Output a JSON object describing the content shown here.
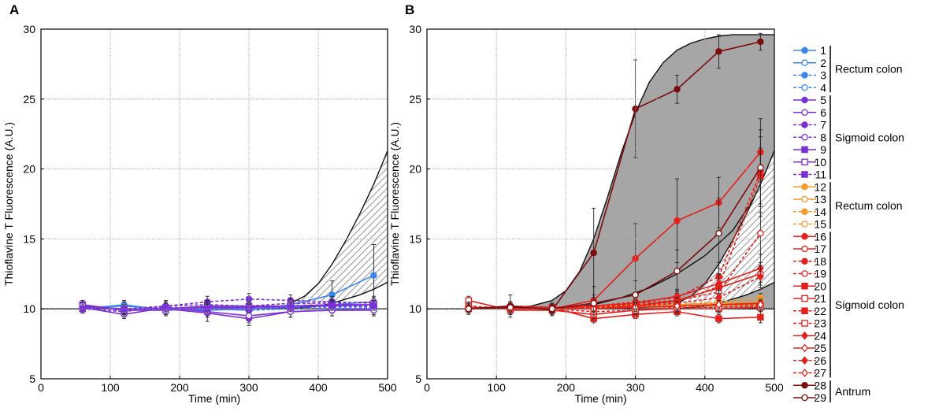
{
  "chart_data": [
    {
      "type": "line",
      "panel": "A",
      "xlabel": "Time (min)",
      "ylabel": "Thioflavine T Fluorescence (A.U.)",
      "xlim": [
        0,
        500
      ],
      "ylim": [
        5,
        30
      ],
      "xticks": [
        0,
        100,
        200,
        300,
        400,
        500
      ],
      "yticks": [
        5,
        10,
        15,
        20,
        25,
        30
      ],
      "grid": true,
      "baseline": 10,
      "x": [
        60,
        120,
        180,
        240,
        300,
        360,
        420,
        480
      ],
      "band": {
        "style": "hatched",
        "x": [
          360,
          380,
          400,
          420,
          440,
          460,
          480,
          500
        ],
        "upper": [
          10.4,
          10.9,
          11.8,
          13.2,
          14.9,
          16.8,
          18.9,
          21.3
        ],
        "lower": [
          10.0,
          10.1,
          10.2,
          10.4,
          10.7,
          11.0,
          11.4,
          11.9
        ]
      },
      "series": [
        {
          "name": "1",
          "values": [
            10.0,
            10.3,
            9.9,
            10.0,
            9.9,
            10.3,
            11.0,
            12.4
          ],
          "err": [
            0.3,
            0.3,
            0.4,
            0.4,
            0.4,
            0.5,
            1.0,
            2.2
          ]
        },
        {
          "name": "2",
          "values": [
            10.1,
            10.2,
            10.0,
            9.9,
            10.0,
            10.1,
            10.3,
            10.5
          ],
          "err": [
            0.3,
            0.3,
            0.3,
            0.3,
            0.3,
            0.3,
            0.3,
            0.4
          ]
        },
        {
          "name": "3",
          "values": [
            10.0,
            10.0,
            10.1,
            10.0,
            9.9,
            10.0,
            10.1,
            10.2
          ],
          "err": [
            0.2,
            0.2,
            0.3,
            0.3,
            0.3,
            0.3,
            0.3,
            0.3
          ]
        },
        {
          "name": "4",
          "values": [
            10.1,
            9.9,
            10.0,
            10.1,
            10.0,
            10.1,
            10.0,
            10.1
          ],
          "err": [
            0.2,
            0.2,
            0.3,
            0.3,
            0.3,
            0.3,
            0.3,
            0.3
          ]
        },
        {
          "name": "5",
          "values": [
            10.2,
            10.0,
            10.0,
            9.7,
            9.3,
            9.8,
            9.9,
            10.0
          ],
          "err": [
            0.3,
            0.3,
            0.4,
            0.6,
            0.5,
            0.4,
            0.4,
            0.4
          ]
        },
        {
          "name": "6",
          "values": [
            10.1,
            9.6,
            10.1,
            9.8,
            9.5,
            9.8,
            9.9,
            9.9
          ],
          "err": [
            0.3,
            0.3,
            0.4,
            0.4,
            0.5,
            0.4,
            0.4,
            0.4
          ]
        },
        {
          "name": "7",
          "values": [
            10.1,
            10.0,
            10.2,
            10.5,
            10.7,
            10.6,
            10.5,
            10.4
          ],
          "err": [
            0.3,
            0.3,
            0.4,
            0.4,
            0.4,
            0.4,
            0.4,
            0.4
          ]
        },
        {
          "name": "8",
          "values": [
            10.0,
            9.8,
            10.2,
            10.3,
            10.2,
            10.4,
            10.4,
            10.5
          ],
          "err": [
            0.3,
            0.3,
            0.3,
            0.3,
            0.3,
            0.3,
            0.3,
            0.3
          ]
        },
        {
          "name": "9",
          "values": [
            10.3,
            9.9,
            10.0,
            10.2,
            10.2,
            10.2,
            10.3,
            10.3
          ],
          "err": [
            0.3,
            0.3,
            0.3,
            0.3,
            0.3,
            0.3,
            0.3,
            0.3
          ]
        },
        {
          "name": "10",
          "values": [
            10.2,
            9.9,
            9.9,
            10.1,
            10.1,
            10.2,
            10.2,
            10.3
          ],
          "err": [
            0.3,
            0.3,
            0.3,
            0.3,
            0.3,
            0.3,
            0.3,
            0.3
          ]
        },
        {
          "name": "11",
          "values": [
            10.0,
            10.0,
            10.1,
            10.0,
            10.0,
            10.1,
            10.2,
            10.2
          ],
          "err": [
            0.3,
            0.3,
            0.3,
            0.3,
            0.3,
            0.3,
            0.3,
            0.3
          ]
        }
      ]
    },
    {
      "type": "line",
      "panel": "B",
      "xlabel": "Time (min)",
      "ylabel": "Thioflavine T Fluorescence (A.U.)",
      "xlim": [
        0,
        500
      ],
      "ylim": [
        5,
        30
      ],
      "xticks": [
        0,
        100,
        200,
        300,
        400,
        500
      ],
      "yticks": [
        5,
        10,
        15,
        20,
        25,
        30
      ],
      "grid": true,
      "baseline": 10,
      "x": [
        60,
        120,
        180,
        240,
        300,
        360,
        420,
        480
      ],
      "band": {
        "style": "solid-gray",
        "x": [
          120,
          150,
          180,
          200,
          220,
          240,
          260,
          280,
          300,
          320,
          340,
          360,
          380,
          400,
          420,
          440,
          460,
          480,
          500
        ],
        "upper": [
          10.1,
          10.2,
          10.6,
          11.3,
          12.7,
          15.0,
          18.0,
          21.2,
          24.0,
          26.2,
          27.6,
          28.5,
          29.0,
          29.3,
          29.5,
          29.6,
          29.6,
          29.6,
          29.6
        ],
        "lower": [
          10.0,
          10.0,
          10.0,
          10.0,
          10.0,
          10.0,
          10.0,
          10.0,
          10.0,
          10.0,
          10.0,
          10.0,
          10.0,
          10.0,
          10.0,
          10.0,
          10.0,
          10.0,
          10.0
        ],
        "inner_curve": {
          "x": [
            200,
            240,
            280,
            320,
            360,
            400,
            440,
            480,
            500
          ],
          "y": [
            10.0,
            10.3,
            10.8,
            11.5,
            12.5,
            13.8,
            15.6,
            18.6,
            21.2
          ]
        }
      },
      "band2": {
        "style": "hatched",
        "x": [
          360,
          380,
          400,
          420,
          440,
          460,
          480,
          500
        ],
        "upper": [
          10.4,
          10.9,
          11.8,
          13.2,
          14.9,
          16.8,
          18.9,
          21.3
        ],
        "lower": [
          10.0,
          10.1,
          10.2,
          10.4,
          10.7,
          11.0,
          11.4,
          11.9
        ]
      },
      "series": [
        {
          "name": "12",
          "values": [
            10.0,
            10.1,
            10.1,
            10.2,
            10.3,
            10.3,
            10.4,
            10.5
          ],
          "err": [
            0.3,
            0.3,
            0.3,
            0.3,
            0.3,
            0.3,
            0.3,
            0.3
          ]
        },
        {
          "name": "13",
          "values": [
            10.1,
            10.0,
            10.0,
            10.1,
            10.2,
            10.2,
            10.3,
            10.3
          ],
          "err": [
            0.3,
            0.3,
            0.3,
            0.3,
            0.3,
            0.3,
            0.3,
            0.3
          ]
        },
        {
          "name": "14",
          "values": [
            10.0,
            10.1,
            10.1,
            10.1,
            10.2,
            10.3,
            10.5,
            10.8
          ],
          "err": [
            0.3,
            0.3,
            0.3,
            0.3,
            0.3,
            0.3,
            0.3,
            0.3
          ]
        },
        {
          "name": "15",
          "values": [
            10.1,
            10.0,
            10.1,
            10.1,
            10.1,
            10.2,
            10.2,
            10.3
          ],
          "err": [
            0.3,
            0.3,
            0.3,
            0.3,
            0.3,
            0.3,
            0.3,
            0.3
          ]
        },
        {
          "name": "16",
          "values": [
            10.1,
            10.0,
            10.0,
            10.6,
            13.6,
            16.3,
            17.6,
            21.2
          ],
          "err": [
            0.3,
            0.4,
            0.4,
            1.0,
            2.5,
            3.0,
            1.8,
            1.6
          ]
        },
        {
          "name": "17",
          "values": [
            10.0,
            10.2,
            10.1,
            10.0,
            10.2,
            10.6,
            11.5,
            12.5
          ],
          "err": [
            0.3,
            0.3,
            0.3,
            0.3,
            0.4,
            0.4,
            0.5,
            0.8
          ]
        },
        {
          "name": "18",
          "values": [
            10.0,
            10.1,
            10.0,
            10.2,
            10.5,
            10.8,
            12.3,
            19.8
          ],
          "err": [
            0.3,
            0.3,
            0.3,
            0.3,
            0.4,
            0.5,
            1.0,
            2.5
          ]
        },
        {
          "name": "19",
          "values": [
            10.2,
            10.0,
            10.1,
            10.2,
            10.4,
            10.6,
            11.2,
            15.4
          ],
          "err": [
            0.3,
            0.3,
            0.3,
            0.3,
            0.4,
            0.5,
            0.8,
            1.5
          ]
        },
        {
          "name": "20",
          "values": [
            10.1,
            10.0,
            10.1,
            9.3,
            9.6,
            9.8,
            9.3,
            9.4
          ],
          "err": [
            0.3,
            0.3,
            0.3,
            0.3,
            0.3,
            0.3,
            0.3,
            0.4
          ]
        },
        {
          "name": "21",
          "values": [
            10.6,
            9.9,
            9.9,
            9.6,
            9.9,
            10.0,
            10.0,
            10.1
          ],
          "err": [
            0.3,
            0.3,
            0.3,
            0.3,
            0.3,
            0.3,
            0.3,
            0.3
          ]
        },
        {
          "name": "22",
          "values": [
            10.0,
            10.1,
            10.1,
            10.1,
            10.3,
            10.5,
            11.6,
            19.5
          ],
          "err": [
            0.3,
            0.3,
            0.3,
            0.3,
            0.4,
            0.5,
            0.9,
            2.0
          ]
        },
        {
          "name": "23",
          "values": [
            10.2,
            10.0,
            10.0,
            9.8,
            9.9,
            10.1,
            10.1,
            10.2
          ],
          "err": [
            0.3,
            0.3,
            0.3,
            0.3,
            0.3,
            0.3,
            0.3,
            0.3
          ]
        },
        {
          "name": "24",
          "values": [
            10.0,
            10.1,
            10.1,
            10.2,
            10.4,
            10.9,
            11.8,
            12.9
          ],
          "err": [
            0.3,
            0.3,
            0.3,
            0.3,
            0.4,
            0.5,
            0.7,
            1.0
          ]
        },
        {
          "name": "25",
          "values": [
            10.1,
            10.0,
            10.1,
            10.0,
            10.1,
            10.2,
            10.3,
            10.4
          ],
          "err": [
            0.3,
            0.3,
            0.3,
            0.3,
            0.3,
            0.3,
            0.3,
            0.3
          ]
        },
        {
          "name": "26",
          "values": [
            10.0,
            10.2,
            10.1,
            10.1,
            10.2,
            10.4,
            10.8,
            12.3
          ],
          "err": [
            0.3,
            0.3,
            0.3,
            0.3,
            0.3,
            0.4,
            0.5,
            0.8
          ]
        },
        {
          "name": "27",
          "values": [
            10.1,
            10.0,
            10.0,
            10.0,
            10.1,
            10.2,
            10.3,
            10.3
          ],
          "err": [
            0.3,
            0.3,
            0.3,
            0.3,
            0.3,
            0.3,
            0.3,
            0.3
          ]
        },
        {
          "name": "28",
          "values": [
            10.0,
            10.2,
            9.9,
            14.0,
            24.3,
            25.7,
            28.4,
            29.1
          ],
          "err": [
            0.3,
            0.8,
            0.4,
            3.2,
            3.5,
            1.0,
            1.2,
            0.6
          ]
        },
        {
          "name": "29",
          "values": [
            10.0,
            10.1,
            10.0,
            10.4,
            11.0,
            12.7,
            15.4,
            20.1
          ],
          "err": [
            0.4,
            0.4,
            0.4,
            0.6,
            1.0,
            1.5,
            2.5,
            3.5
          ]
        }
      ]
    }
  ],
  "panels": {
    "a_label": "A",
    "b_label": "B"
  },
  "legend": {
    "entries": [
      {
        "label": "1",
        "color": "#3a86f0",
        "dash": false,
        "marker": "circle-filled"
      },
      {
        "label": "2",
        "color": "#3a86f0",
        "dash": false,
        "marker": "circle-open"
      },
      {
        "label": "3",
        "color": "#3a86f0",
        "dash": true,
        "marker": "circle-filled"
      },
      {
        "label": "4",
        "color": "#3a86f0",
        "dash": true,
        "marker": "circle-open"
      },
      {
        "label": "5",
        "color": "#7a2fd6",
        "dash": false,
        "marker": "circle-filled"
      },
      {
        "label": "6",
        "color": "#7a2fd6",
        "dash": false,
        "marker": "circle-open"
      },
      {
        "label": "7",
        "color": "#7a2fd6",
        "dash": true,
        "marker": "circle-filled"
      },
      {
        "label": "8",
        "color": "#7a2fd6",
        "dash": true,
        "marker": "circle-open"
      },
      {
        "label": "9",
        "color": "#7a2fd6",
        "dash": false,
        "marker": "square-filled"
      },
      {
        "label": "10",
        "color": "#7a2fd6",
        "dash": false,
        "marker": "square-open"
      },
      {
        "label": "11",
        "color": "#7a2fd6",
        "dash": true,
        "marker": "square-filled"
      },
      {
        "label": "12",
        "color": "#f39a2a",
        "dash": false,
        "marker": "circle-filled"
      },
      {
        "label": "13",
        "color": "#f39a2a",
        "dash": false,
        "marker": "circle-open"
      },
      {
        "label": "14",
        "color": "#f39a2a",
        "dash": true,
        "marker": "circle-filled"
      },
      {
        "label": "15",
        "color": "#f39a2a",
        "dash": true,
        "marker": "circle-open"
      },
      {
        "label": "16",
        "color": "#e3201b",
        "dash": false,
        "marker": "circle-filled"
      },
      {
        "label": "17",
        "color": "#e3201b",
        "dash": false,
        "marker": "circle-open"
      },
      {
        "label": "18",
        "color": "#e3201b",
        "dash": true,
        "marker": "circle-filled"
      },
      {
        "label": "19",
        "color": "#e3201b",
        "dash": true,
        "marker": "circle-open"
      },
      {
        "label": "20",
        "color": "#e3201b",
        "dash": false,
        "marker": "square-filled"
      },
      {
        "label": "21",
        "color": "#e3201b",
        "dash": false,
        "marker": "square-open"
      },
      {
        "label": "22",
        "color": "#e3201b",
        "dash": true,
        "marker": "square-filled"
      },
      {
        "label": "23",
        "color": "#e3201b",
        "dash": true,
        "marker": "square-open"
      },
      {
        "label": "24",
        "color": "#e3201b",
        "dash": false,
        "marker": "diamond-filled"
      },
      {
        "label": "25",
        "color": "#e3201b",
        "dash": false,
        "marker": "diamond-open"
      },
      {
        "label": "26",
        "color": "#e3201b",
        "dash": true,
        "marker": "diamond-filled"
      },
      {
        "label": "27",
        "color": "#e3201b",
        "dash": true,
        "marker": "diamond-open"
      },
      {
        "label": "28",
        "color": "#7d0c0c",
        "dash": false,
        "marker": "circle-filled"
      },
      {
        "label": "29",
        "color": "#7d0c0c",
        "dash": false,
        "marker": "circle-open"
      }
    ],
    "groups": [
      {
        "label": "Rectum colon",
        "from": 1,
        "to": 4
      },
      {
        "label": "Sigmoid colon",
        "from": 5,
        "to": 11
      },
      {
        "label": "Rectum colon",
        "from": 12,
        "to": 15
      },
      {
        "label": "Sigmoid colon",
        "from": 16,
        "to": 27
      },
      {
        "label": "Antrum",
        "from": 28,
        "to": 29
      }
    ]
  }
}
